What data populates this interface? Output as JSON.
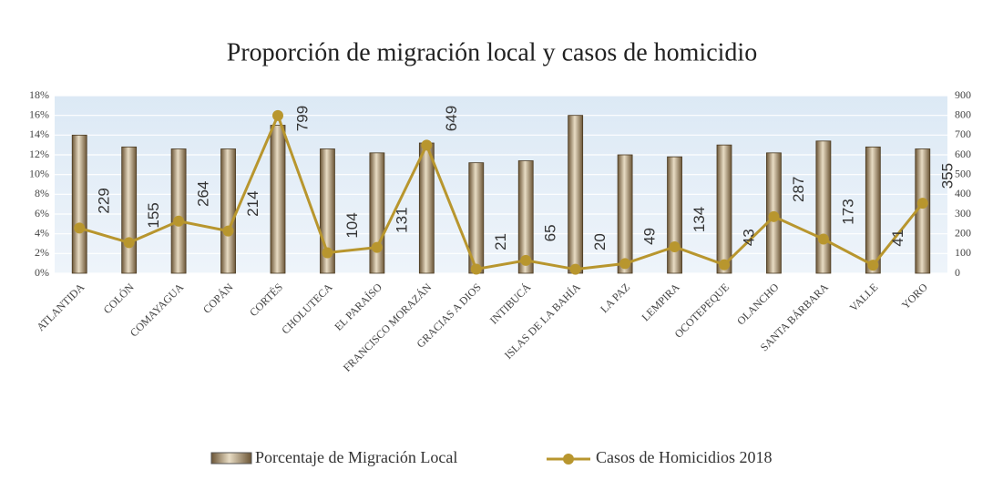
{
  "chart_data": {
    "type": "bar-line",
    "title": "Proporción de migración local y casos de homicidio",
    "categories": [
      "ATLANTIDA",
      "COLÓN",
      "COMAYAGUA",
      "COPÁN",
      "CORTÉS",
      "CHOLUTECA",
      "EL PARAÍSO",
      "FRANCISCO MORAZÁN",
      "GRACIAS A DIOS",
      "INTIBUCÁ",
      "ISLAS DE LA BAHÍA",
      "LA PAZ",
      "LEMPIRA",
      "OCOTEPEQUE",
      "OLANCHO",
      "SANTA BÁRBARA",
      "VALLE",
      "YORO"
    ],
    "series": [
      {
        "name": "Porcentaje de Migración Local",
        "color": "#a08a6a",
        "values": [
          14,
          12.8,
          12.6,
          12.6,
          15,
          12.6,
          12.2,
          13.2,
          11.2,
          11.4,
          16,
          12,
          11.8,
          13,
          12.2,
          13.4,
          12.8,
          12.6
        ]
      },
      {
        "name": "Casos de Homicidios 2018",
        "color": "#b8962e",
        "axis": "y2",
        "values": [
          229,
          155,
          264,
          214,
          799,
          104,
          131,
          649,
          21,
          65,
          20,
          49,
          134,
          43,
          287,
          173,
          41,
          355
        ]
      }
    ],
    "ylim": [
      0,
      18
    ],
    "yticks": [
      {
        "value": 0,
        "label": "0%"
      },
      {
        "value": 2,
        "label": "2%"
      },
      {
        "value": 4,
        "label": "4%"
      },
      {
        "value": 6,
        "label": "6%"
      },
      {
        "value": 8,
        "label": "8%"
      },
      {
        "value": 10,
        "label": "10%"
      },
      {
        "value": 12,
        "label": "12%"
      },
      {
        "value": 14,
        "label": "14%"
      },
      {
        "value": 16,
        "label": "16%"
      },
      {
        "value": 18,
        "label": "18%"
      }
    ],
    "y2lim": [
      0,
      900
    ],
    "y2ticks": [
      0,
      100,
      200,
      300,
      400,
      500,
      600,
      700,
      800,
      900
    ],
    "grid": true,
    "legend": "bottom"
  }
}
